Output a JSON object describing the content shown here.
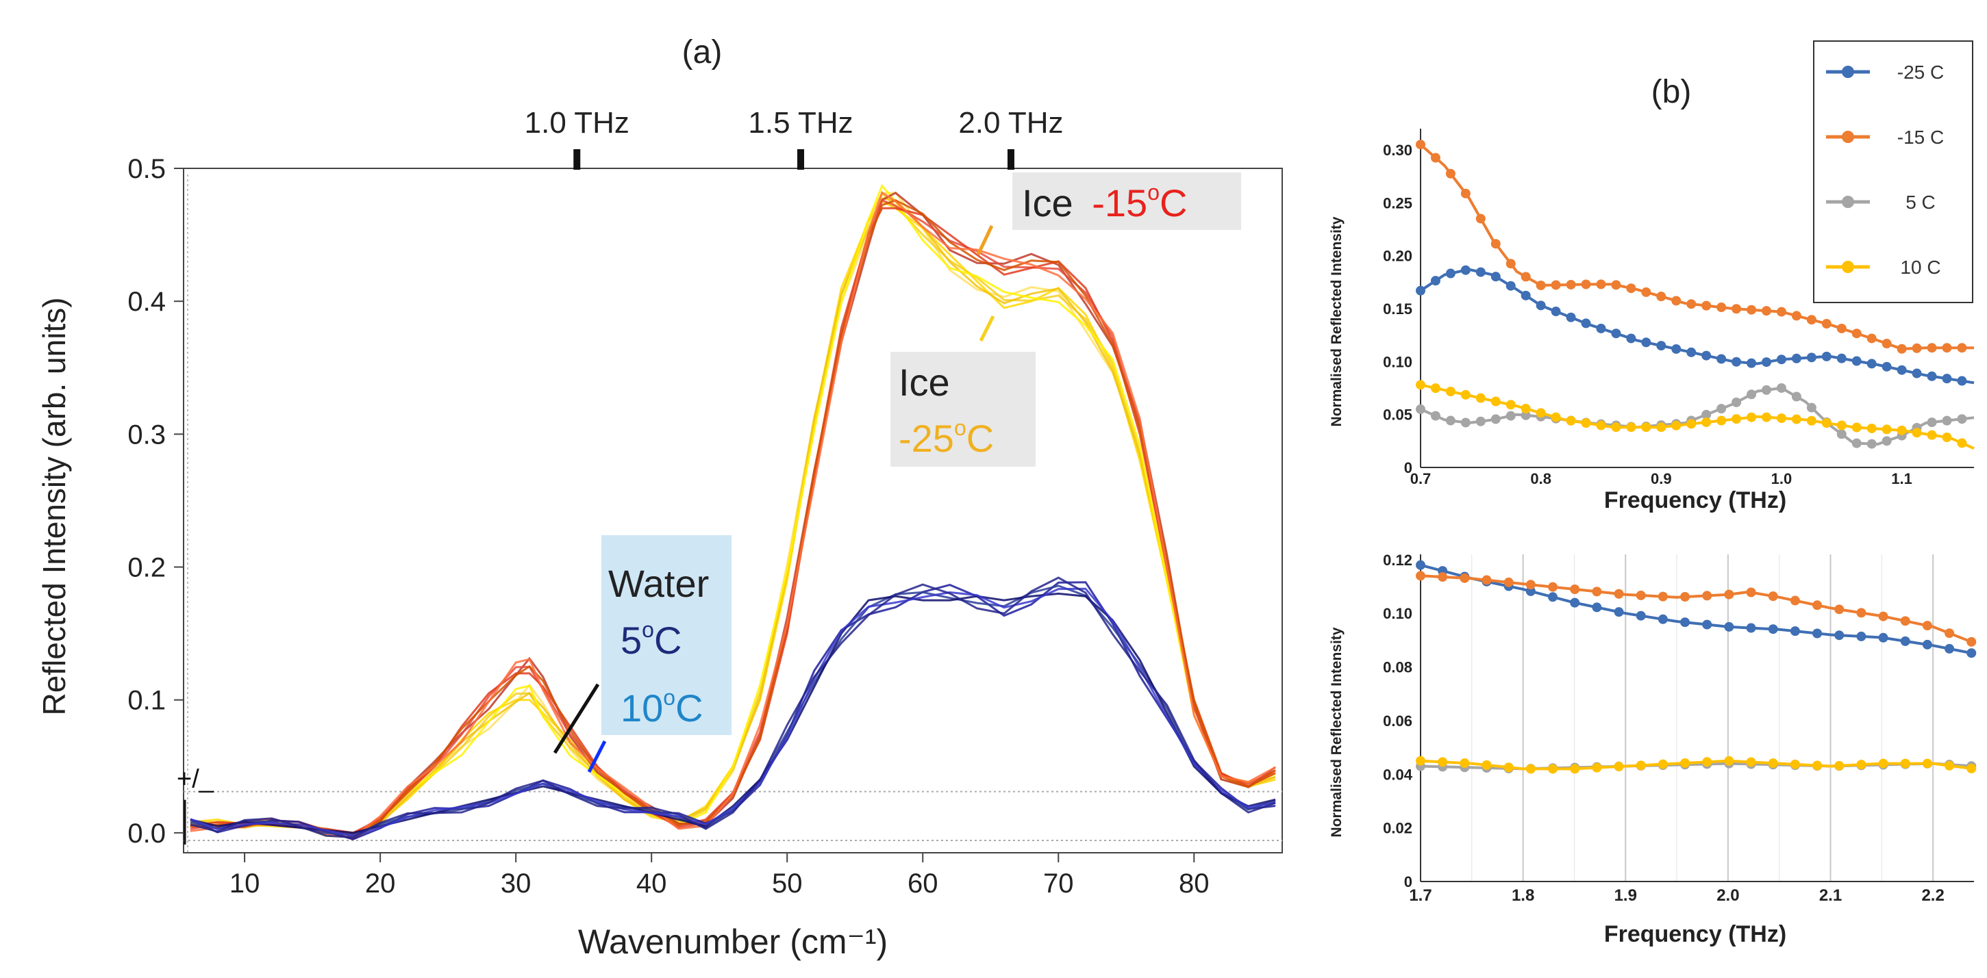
{
  "chart_data": [
    {
      "panel": "(a)",
      "type": "line",
      "xlabel": "Wavenumber (cm⁻¹)",
      "ylabel": "Reflected Intensity (arb. units)",
      "xlim": [
        5.5,
        86.5
      ],
      "ylim": [
        -0.015,
        0.5
      ],
      "xticks": [
        "10",
        "20",
        "30",
        "40",
        "50",
        "60",
        "70",
        "80"
      ],
      "yticks": [
        "0.0",
        "0.1",
        "0.2",
        "0.3",
        "0.4",
        "0.5"
      ],
      "top_axis": [
        {
          "label": "1.0 THz",
          "at": 34.5
        },
        {
          "label": "1.5 THz",
          "at": 51
        },
        {
          "label": "2.0 THz",
          "at": 66.5
        }
      ],
      "noise_band": {
        "label": "+/_",
        "lower": -0.015,
        "upper": 0.031
      },
      "series": [
        {
          "name": "Ice -15°C",
          "color": "#e23b1e",
          "x": [
            6,
            8,
            10,
            12,
            14,
            16,
            18,
            20,
            22,
            24,
            26,
            28,
            30,
            31,
            32,
            34,
            36,
            38,
            40,
            42,
            44,
            46,
            48,
            50,
            52,
            54,
            56,
            57,
            58,
            60,
            62,
            64,
            66,
            68,
            70,
            72,
            74,
            76,
            78,
            80,
            82,
            84,
            86
          ],
          "y": [
            0.005,
            0.008,
            0.007,
            0.006,
            0.004,
            0.003,
            0.0,
            0.01,
            0.03,
            0.05,
            0.08,
            0.105,
            0.12,
            0.12,
            0.11,
            0.08,
            0.05,
            0.03,
            0.015,
            0.005,
            0.01,
            0.03,
            0.07,
            0.15,
            0.27,
            0.38,
            0.45,
            0.47,
            0.47,
            0.465,
            0.45,
            0.435,
            0.42,
            0.425,
            0.43,
            0.41,
            0.37,
            0.3,
            0.2,
            0.1,
            0.045,
            0.035,
            0.045
          ]
        },
        {
          "name": "Ice -25°C",
          "color": "#f5d020",
          "x": [
            6,
            8,
            10,
            12,
            14,
            16,
            18,
            20,
            22,
            24,
            26,
            28,
            30,
            31,
            32,
            34,
            36,
            38,
            40,
            42,
            44,
            46,
            48,
            50,
            52,
            54,
            56,
            57,
            58,
            60,
            62,
            64,
            66,
            68,
            70,
            72,
            74,
            76,
            78,
            80,
            82,
            84,
            86
          ],
          "y": [
            0.008,
            0.01,
            0.006,
            0.005,
            0.004,
            0.002,
            0.0,
            0.008,
            0.025,
            0.045,
            0.07,
            0.09,
            0.1,
            0.1,
            0.09,
            0.07,
            0.045,
            0.025,
            0.012,
            0.008,
            0.02,
            0.05,
            0.1,
            0.19,
            0.31,
            0.41,
            0.46,
            0.475,
            0.47,
            0.455,
            0.435,
            0.415,
            0.395,
            0.4,
            0.41,
            0.39,
            0.35,
            0.28,
            0.19,
            0.1,
            0.045,
            0.035,
            0.04
          ]
        },
        {
          "name": "Water 5°C / 10°C",
          "color": "#1c1c9a",
          "x": [
            6,
            8,
            10,
            12,
            14,
            16,
            18,
            20,
            22,
            24,
            26,
            28,
            30,
            32,
            34,
            36,
            38,
            40,
            42,
            44,
            46,
            48,
            50,
            52,
            54,
            56,
            58,
            60,
            62,
            64,
            66,
            68,
            70,
            72,
            74,
            76,
            78,
            80,
            82,
            84,
            86
          ],
          "y": [
            0.01,
            0.005,
            0.008,
            0.006,
            0.004,
            0.002,
            0.0,
            0.005,
            0.01,
            0.015,
            0.02,
            0.025,
            0.03,
            0.035,
            0.03,
            0.025,
            0.02,
            0.015,
            0.01,
            0.005,
            0.02,
            0.04,
            0.07,
            0.11,
            0.15,
            0.175,
            0.178,
            0.175,
            0.175,
            0.178,
            0.175,
            0.178,
            0.18,
            0.178,
            0.16,
            0.13,
            0.09,
            0.05,
            0.03,
            0.02,
            0.025
          ]
        }
      ],
      "annotations": [
        {
          "text": "Ice",
          "text2": "-15",
          "sup": "o",
          "text3": "C"
        },
        {
          "text": "Ice",
          "text2": "-25",
          "sup": "o",
          "text3": "C"
        },
        {
          "text": "Water",
          "line2": "5",
          "sup2": "o",
          "unit2": "C",
          "line3": "10",
          "sup3": "o",
          "unit3": "C"
        }
      ]
    },
    {
      "panel": "(b)",
      "type": "line",
      "xlabel": "Frequency (THz)",
      "ylabel": "Normalised Reflected Intensity",
      "xlim": [
        0.7,
        1.16
      ],
      "ylim": [
        0,
        0.32
      ],
      "xticks": [
        "0.7",
        "0.8",
        "0.9",
        "1.0",
        "1.1"
      ],
      "yticks": [
        "0",
        "0.05",
        "0.10",
        "0.15",
        "0.20",
        "0.25",
        "0.30"
      ],
      "legend": {
        "placement": "top-right"
      },
      "series": [
        {
          "name": "-25 C",
          "color": "#3f6fb4",
          "x": [
            0.7,
            0.72,
            0.74,
            0.76,
            0.78,
            0.8,
            0.84,
            0.88,
            0.92,
            0.96,
            0.98,
            1.0,
            1.04,
            1.08,
            1.12,
            1.16
          ],
          "y": [
            0.167,
            0.182,
            0.187,
            0.182,
            0.168,
            0.153,
            0.135,
            0.12,
            0.11,
            0.1,
            0.098,
            0.102,
            0.105,
            0.097,
            0.087,
            0.08
          ]
        },
        {
          "name": "-15 C",
          "color": "#ed7d31",
          "x": [
            0.7,
            0.72,
            0.74,
            0.76,
            0.78,
            0.8,
            0.84,
            0.86,
            0.88,
            0.92,
            0.96,
            1.0,
            1.04,
            1.08,
            1.1,
            1.12,
            1.16
          ],
          "y": [
            0.305,
            0.285,
            0.255,
            0.215,
            0.185,
            0.172,
            0.173,
            0.173,
            0.168,
            0.155,
            0.15,
            0.147,
            0.135,
            0.12,
            0.112,
            0.113,
            0.113
          ]
        },
        {
          "name": "5 C",
          "color": "#a5a5a5",
          "x": [
            0.7,
            0.72,
            0.74,
            0.76,
            0.78,
            0.8,
            0.84,
            0.88,
            0.92,
            0.96,
            0.98,
            1.0,
            1.02,
            1.04,
            1.06,
            1.08,
            1.1,
            1.12,
            1.16
          ],
          "y": [
            0.055,
            0.045,
            0.042,
            0.045,
            0.05,
            0.048,
            0.042,
            0.038,
            0.042,
            0.06,
            0.072,
            0.075,
            0.062,
            0.04,
            0.023,
            0.022,
            0.03,
            0.042,
            0.047
          ]
        },
        {
          "name": "10 C",
          "color": "#ffc000",
          "x": [
            0.7,
            0.74,
            0.78,
            0.82,
            0.86,
            0.9,
            0.94,
            0.98,
            1.02,
            1.06,
            1.1,
            1.14,
            1.16
          ],
          "y": [
            0.078,
            0.068,
            0.058,
            0.045,
            0.038,
            0.038,
            0.043,
            0.048,
            0.045,
            0.038,
            0.035,
            0.028,
            0.018
          ]
        }
      ]
    },
    {
      "panel": "(b-lower)",
      "type": "line",
      "xlabel": "Frequency (THz)",
      "ylabel": "Normalised Reflected Intensity",
      "xlim": [
        1.7,
        2.24
      ],
      "ylim": [
        0,
        0.122
      ],
      "xticks": [
        "1.7",
        "1.8",
        "1.9",
        "2.0",
        "2.1",
        "2.2"
      ],
      "yticks": [
        "0",
        "0.02",
        "0.04",
        "0.06",
        "0.08",
        "0.10",
        "0.12"
      ],
      "grid": true,
      "series": [
        {
          "name": "-25 C",
          "color": "#3f6fb4",
          "x": [
            1.7,
            1.75,
            1.8,
            1.85,
            1.9,
            1.95,
            2.0,
            2.05,
            2.1,
            2.15,
            2.2,
            2.24
          ],
          "y": [
            0.118,
            0.113,
            0.109,
            0.104,
            0.1,
            0.097,
            0.095,
            0.094,
            0.092,
            0.091,
            0.088,
            0.085
          ]
        },
        {
          "name": "-15 C",
          "color": "#ed7d31",
          "x": [
            1.7,
            1.75,
            1.8,
            1.85,
            1.9,
            1.95,
            2.0,
            2.02,
            2.05,
            2.1,
            2.15,
            2.2,
            2.24
          ],
          "y": [
            0.114,
            0.113,
            0.111,
            0.109,
            0.107,
            0.106,
            0.107,
            0.108,
            0.106,
            0.102,
            0.099,
            0.095,
            0.089
          ]
        },
        {
          "name": "5 C",
          "color": "#a5a5a5",
          "x": [
            1.7,
            1.8,
            1.9,
            2.0,
            2.1,
            2.2,
            2.24
          ],
          "y": [
            0.043,
            0.042,
            0.043,
            0.044,
            0.043,
            0.044,
            0.043
          ]
        },
        {
          "name": "10 C",
          "color": "#ffc000",
          "x": [
            1.7,
            1.75,
            1.8,
            1.85,
            1.9,
            1.95,
            2.0,
            2.05,
            2.1,
            2.15,
            2.2,
            2.24
          ],
          "y": [
            0.045,
            0.044,
            0.042,
            0.042,
            0.043,
            0.044,
            0.045,
            0.044,
            0.043,
            0.044,
            0.044,
            0.042
          ]
        }
      ]
    }
  ]
}
